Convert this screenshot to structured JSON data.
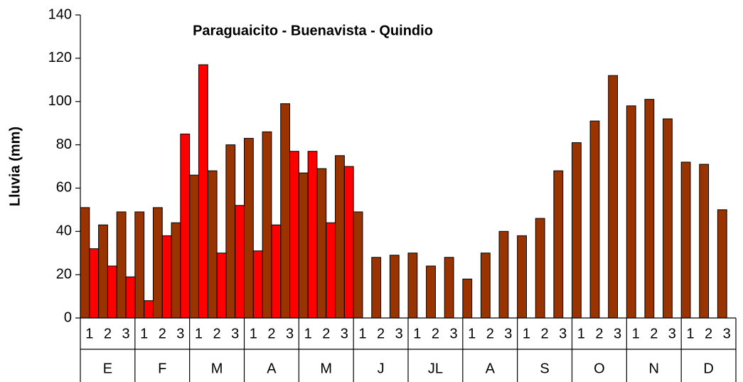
{
  "chart_data": {
    "type": "bar",
    "title": "Paraguaicito - Buenavista - Quindio",
    "y_label": "Lluvia (mm)",
    "categories": [
      "1",
      "2",
      "3",
      "1",
      "2",
      "3",
      "1",
      "2",
      "3",
      "1",
      "2",
      "3",
      "1",
      "2",
      "3",
      "1",
      "2",
      "3",
      "1",
      "2",
      "3",
      "1",
      "2",
      "3",
      "1",
      "2",
      "3",
      "1",
      "2",
      "3",
      "1",
      "2",
      "3",
      "1",
      "2",
      "3"
    ],
    "groups": [
      "E",
      "F",
      "M",
      "A",
      "M",
      "J",
      "JL",
      "A",
      "S",
      "O",
      "N",
      "D"
    ],
    "series": [
      {
        "color": "#993300",
        "values": [
          51,
          43,
          49,
          49,
          51,
          44,
          66,
          68,
          80,
          83,
          86,
          99,
          67,
          69,
          75,
          49,
          28,
          29,
          30,
          24,
          28,
          18,
          30,
          40,
          38,
          46,
          68,
          81,
          91,
          112,
          98,
          101,
          92,
          72,
          71,
          50
        ]
      },
      {
        "color": "#ff0000",
        "values": [
          32,
          24,
          19,
          8,
          38,
          85,
          117,
          30,
          52,
          31,
          43,
          77,
          77,
          44,
          70,
          null,
          null,
          null,
          null,
          null,
          null,
          null,
          null,
          null,
          null,
          null,
          null,
          null,
          null,
          null,
          null,
          null,
          null,
          null,
          null,
          null
        ]
      }
    ],
    "ylim": [
      0,
      140
    ],
    "yticks": [
      0,
      20,
      40,
      60,
      80,
      100,
      120,
      140
    ]
  }
}
